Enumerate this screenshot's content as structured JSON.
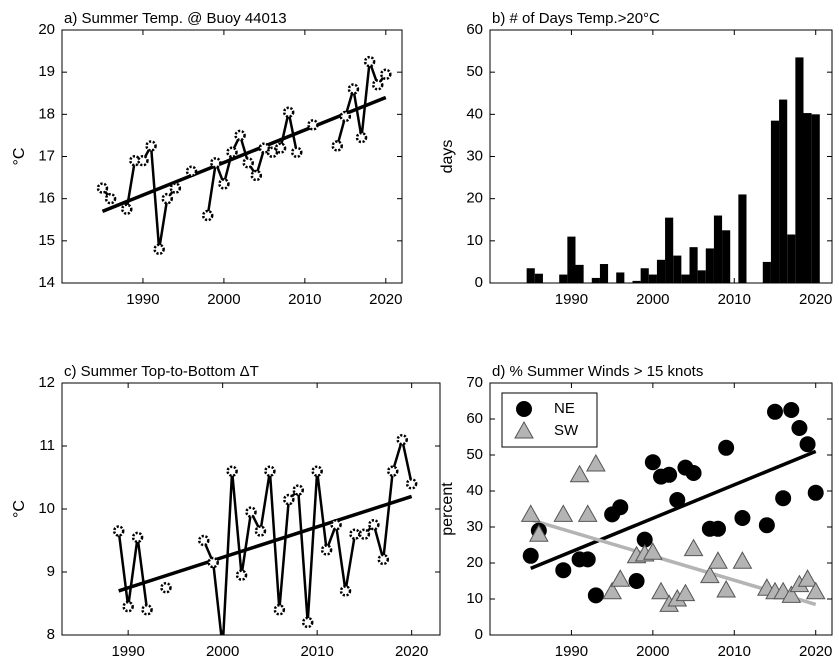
{
  "chart_data": [
    {
      "type": "line",
      "title": "a) Summer Temp. @ Buoy 44013",
      "ylabel": "°C",
      "color": "#000000",
      "x": [
        1985,
        1986,
        1987,
        1988,
        1989,
        1990,
        1991,
        1992,
        1993,
        1994,
        1995,
        1996,
        1997,
        1998,
        1999,
        2000,
        2001,
        2002,
        2003,
        2004,
        2005,
        2006,
        2007,
        2008,
        2009,
        2010,
        2011,
        2012,
        2013,
        2014,
        2015,
        2016,
        2017,
        2018,
        2019,
        2020
      ],
      "values": [
        16.25,
        16.0,
        null,
        15.75,
        16.9,
        16.9,
        17.25,
        14.8,
        16.0,
        16.25,
        null,
        16.65,
        null,
        15.6,
        16.85,
        16.35,
        17.1,
        17.5,
        16.85,
        16.55,
        17.2,
        17.1,
        17.2,
        18.05,
        17.1,
        null,
        17.75,
        null,
        null,
        17.25,
        17.95,
        18.6,
        17.45,
        19.25,
        18.7,
        18.95
      ],
      "trend": {
        "x": [
          1985,
          2020
        ],
        "values": [
          15.7,
          18.4
        ]
      },
      "xlim": [
        1980,
        2022
      ],
      "ylim": [
        14,
        20
      ],
      "xticks": [
        1990,
        2000,
        2010,
        2020
      ],
      "yticks": [
        14,
        15,
        16,
        17,
        18,
        19,
        20
      ]
    },
    {
      "type": "bar",
      "title": "b) # of Days Temp.>20°C",
      "ylabel": "days",
      "color": "#000000",
      "x": [
        1985,
        1986,
        1989,
        1990,
        1991,
        1993,
        1994,
        1996,
        1998,
        1999,
        2000,
        2001,
        2002,
        2003,
        2004,
        2005,
        2006,
        2007,
        2008,
        2009,
        2011,
        2014,
        2015,
        2016,
        2017,
        2018,
        2019,
        2020
      ],
      "values": [
        3.5,
        2.2,
        2.0,
        11,
        4.3,
        1.2,
        4.5,
        2.5,
        0.5,
        3.5,
        2.0,
        5.5,
        15.5,
        6.5,
        2.0,
        8.5,
        3.0,
        8.2,
        16,
        12.5,
        21,
        5,
        38.5,
        43.5,
        11.5,
        53.5,
        40.3,
        40
      ],
      "xlim": [
        1980,
        2022
      ],
      "ylim": [
        0,
        60
      ],
      "xticks": [
        1990,
        2000,
        2010,
        2020
      ],
      "yticks": [
        0,
        10,
        20,
        30,
        40,
        50,
        60
      ]
    },
    {
      "type": "line",
      "title": "c) Summer Top-to-Bottom ΔT",
      "ylabel": "°C",
      "color": "#000000",
      "x": [
        1989,
        1990,
        1991,
        1992,
        1993,
        1994,
        1995,
        1996,
        1997,
        1998,
        1999,
        2000,
        2001,
        2002,
        2003,
        2004,
        2005,
        2006,
        2007,
        2008,
        2009,
        2010,
        2011,
        2012,
        2013,
        2014,
        2015,
        2016,
        2017,
        2018,
        2019,
        2020
      ],
      "values": [
        9.65,
        8.45,
        9.55,
        8.4,
        null,
        8.75,
        null,
        null,
        null,
        9.5,
        9.15,
        7.8,
        10.6,
        8.95,
        9.95,
        9.65,
        10.6,
        8.4,
        10.15,
        10.3,
        8.2,
        10.6,
        9.35,
        9.75,
        8.7,
        9.6,
        9.6,
        9.75,
        9.2,
        10.6,
        11.1,
        10.4
      ],
      "trend": {
        "x": [
          1989,
          2020
        ],
        "values": [
          8.7,
          10.2
        ]
      },
      "xlim": [
        1983,
        2023
      ],
      "ylim": [
        8,
        12
      ],
      "xticks": [
        1990,
        2000,
        2010,
        2020
      ],
      "yticks": [
        8,
        9,
        10,
        11,
        12
      ]
    },
    {
      "type": "scatter",
      "title": "d) % Summer Winds > 15 knots",
      "ylabel": "percent",
      "legend": "upper left",
      "x": [
        1985,
        1986,
        1989,
        1991,
        1992,
        1993,
        1995,
        1996,
        1998,
        1999,
        2000,
        2001,
        2002,
        2003,
        2004,
        2005,
        2007,
        2008,
        2009,
        2011,
        2014,
        2015,
        2016,
        2017,
        2018,
        2019,
        2020
      ],
      "series": [
        {
          "name": "NE",
          "color": "#000000",
          "marker": "circle",
          "values": [
            22,
            29,
            18,
            21,
            21,
            11,
            33.5,
            35.5,
            15,
            26.5,
            48,
            44,
            44.5,
            37.5,
            46.5,
            45,
            29.5,
            29.5,
            52,
            32.5,
            30.5,
            62,
            38,
            62.5,
            57.5,
            53,
            39.5
          ],
          "trend": {
            "x": [
              1985,
              2020
            ],
            "values": [
              18.5,
              51
            ]
          }
        },
        {
          "name": "SW",
          "color": "#b4b4b4",
          "marker": "triangle",
          "values": [
            33.5,
            28,
            33.5,
            44.5,
            33.5,
            47.5,
            12,
            15.5,
            22,
            22.5,
            23,
            12,
            8.5,
            10,
            11.5,
            24,
            16.5,
            20.5,
            12.5,
            20.5,
            13,
            12,
            12,
            11,
            14,
            15.5,
            12
          ],
          "trend": {
            "x": [
              1985,
              2020
            ],
            "values": [
              32,
              8.5
            ]
          }
        }
      ],
      "xlim": [
        1980,
        2022
      ],
      "ylim": [
        0,
        70
      ],
      "xticks": [
        1990,
        2000,
        2010,
        2020
      ],
      "yticks": [
        0,
        10,
        20,
        30,
        40,
        50,
        60,
        70
      ]
    }
  ]
}
